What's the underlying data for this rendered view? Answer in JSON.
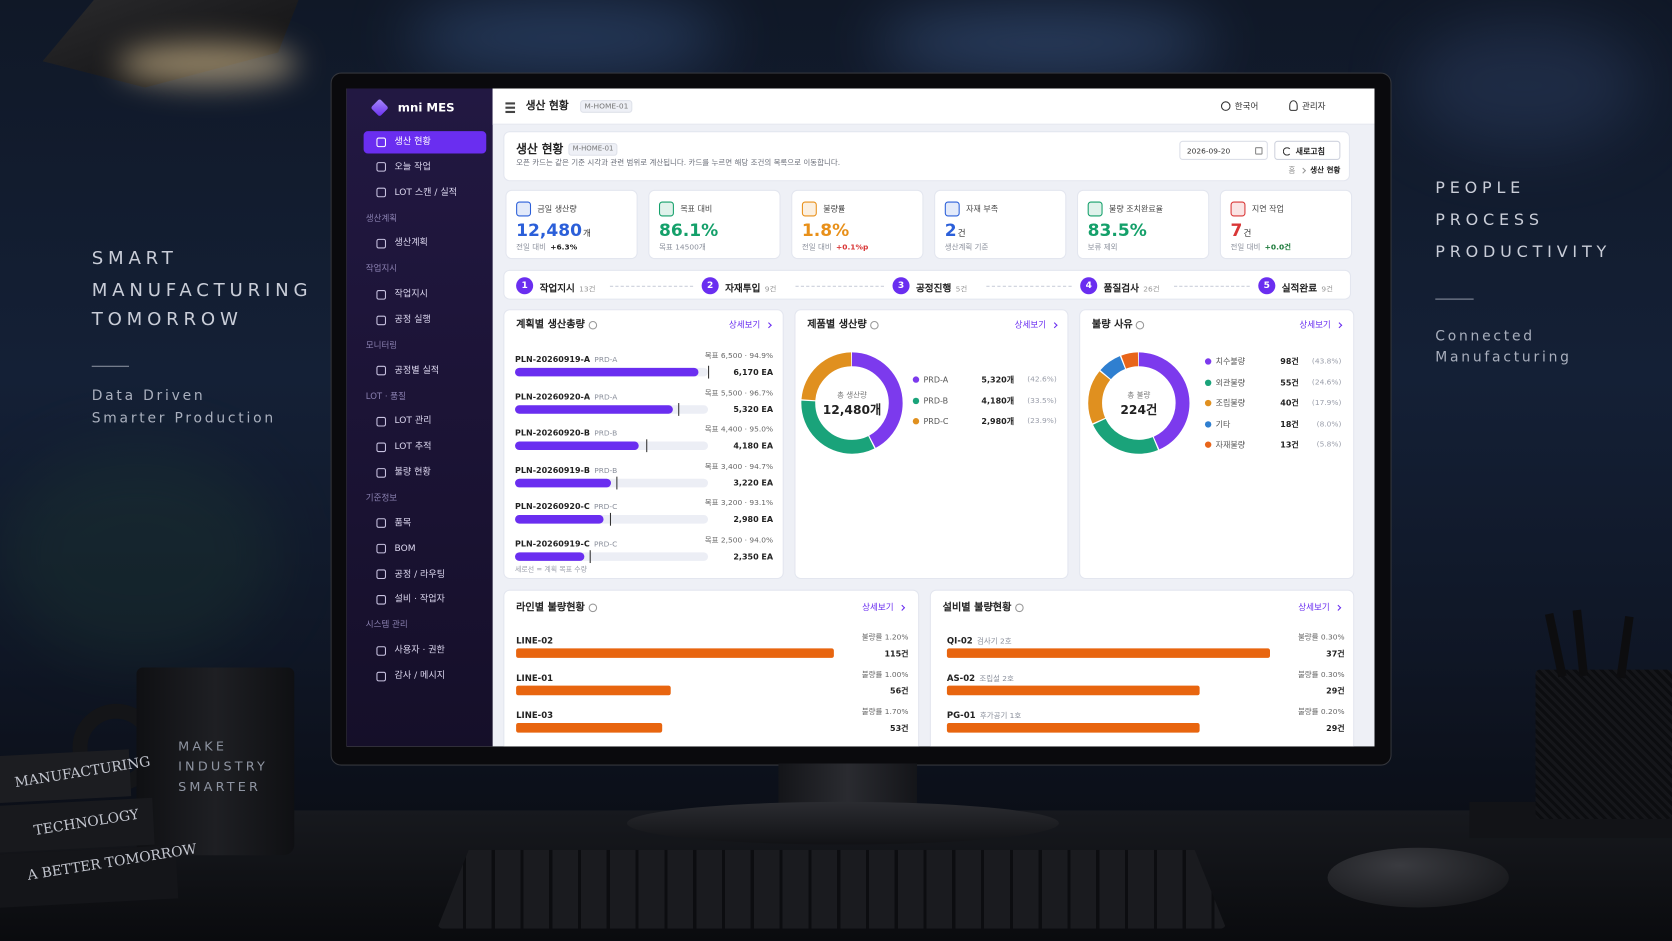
{
  "scene": {
    "left_tagline": [
      "SMART",
      "MANUFACTURING",
      "TOMORROW"
    ],
    "left_sub": [
      "Data Driven",
      "Smarter Production"
    ],
    "right_tagline": [
      "PEOPLE",
      "PROCESS",
      "PRODUCTIVITY"
    ],
    "right_sub": [
      "Connected",
      "Manufacturing"
    ],
    "mug": [
      "MAKE",
      "INDUSTRY",
      "SMARTER"
    ],
    "books": [
      "MANUFACTURING",
      "TECHNOLOGY",
      "A BETTER TOMORROW"
    ]
  },
  "app": {
    "brand": "mni MES",
    "sidebar": [
      {
        "items": [
          "생산 현황",
          "오늘 작업",
          "LOT 스캔 / 실적"
        ]
      },
      {
        "title": "생산계획",
        "items": [
          "생산계획"
        ]
      },
      {
        "title": "작업지시",
        "items": [
          "작업지시",
          "공정 실행"
        ]
      },
      {
        "title": "모니터링",
        "items": [
          "공정별 실적"
        ]
      },
      {
        "title": "LOT · 품질",
        "items": [
          "LOT 관리",
          "LOT 추적",
          "불량 현황"
        ]
      },
      {
        "title": "기준정보",
        "items": [
          "품목",
          "BOM",
          "공정 / 라우팅",
          "설비 · 작업자"
        ]
      },
      {
        "title": "시스템 관리",
        "items": [
          "사용자 · 권한",
          "감사 / 메시지"
        ]
      }
    ],
    "topbar": {
      "title": "생산 현황",
      "code": "M-HOME-01",
      "language": "한국어",
      "user": "관리자"
    },
    "header": {
      "title": "생산 현황",
      "code": "M-HOME-01",
      "description": "오픈 카드는 같은 기준 시각과 관련 범위로 계산됩니다. 카드를 누르면 해당 조건의 목록으로 이동합니다.",
      "date": "2026-09-20",
      "refresh": "새로고침",
      "breadcrumb": [
        "홈",
        "생산 현황"
      ]
    },
    "kpis": [
      {
        "label": "금일 생산량",
        "value": "12,480",
        "unit": "개",
        "sub": "전일 대비",
        "delta": "+6.3%",
        "color": "#2b5fd9",
        "delta_color": "#222222"
      },
      {
        "label": "목표 대비",
        "value": "86.1%",
        "sub": "목표 14500개",
        "color": "#14a06a"
      },
      {
        "label": "불량률",
        "value": "1.8%",
        "sub": "전일 대비",
        "delta": "+0.1%p",
        "color": "#e8901a",
        "delta_color": "#d93636"
      },
      {
        "label": "자재 부족",
        "value": "2",
        "unit": "건",
        "sub": "생산계획 기준",
        "color": "#2b5fd9"
      },
      {
        "label": "불량 조치완료율",
        "value": "83.5%",
        "sub": "보류 제외",
        "color": "#14a06a"
      },
      {
        "label": "지연 작업",
        "value": "7",
        "unit": "건",
        "sub": "전일 대비",
        "delta": "+0.0건",
        "color": "#d93636",
        "delta_color": "#1c7a3a"
      }
    ],
    "steps": [
      {
        "number": 1,
        "label": "작업지시",
        "count": "13건"
      },
      {
        "number": 2,
        "label": "자재투입",
        "count": "9건"
      },
      {
        "number": 3,
        "label": "공정진행",
        "count": "5건"
      },
      {
        "number": 4,
        "label": "품질검사",
        "count": "26건"
      },
      {
        "number": 5,
        "label": "실적완료",
        "count": "9건"
      }
    ],
    "plan_panel": {
      "title": "계획별 생산총량",
      "link": "상세보기",
      "color": "#6a2ef0",
      "rows": [
        {
          "plan": "PLN-20260919-A",
          "product": "PRD-A",
          "target": 6500,
          "target_label": "목표 6,500 · 94.9%",
          "actual": 6170,
          "actual_label": "6,170 EA"
        },
        {
          "plan": "PLN-20260920-A",
          "product": "PRD-A",
          "target": 5500,
          "target_label": "목표 5,500 · 96.7%",
          "actual": 5320,
          "actual_label": "5,320 EA"
        },
        {
          "plan": "PLN-20260920-B",
          "product": "PRD-B",
          "target": 4400,
          "target_label": "목표 4,400 · 95.0%",
          "actual": 4180,
          "actual_label": "4,180 EA"
        },
        {
          "plan": "PLN-20260919-B",
          "product": "PRD-B",
          "target": 3400,
          "target_label": "목표 3,400 · 94.7%",
          "actual": 3220,
          "actual_label": "3,220 EA"
        },
        {
          "plan": "PLN-20260920-C",
          "product": "PRD-C",
          "target": 3200,
          "target_label": "목표 3,200 · 93.1%",
          "actual": 2980,
          "actual_label": "2,980 EA"
        },
        {
          "plan": "PLN-20260919-C",
          "product": "PRD-C",
          "target": 2500,
          "target_label": "목표 2,500 · 94.0%",
          "actual": 2350,
          "actual_label": "2,350 EA"
        }
      ],
      "note": "세로선 = 계획 목표 수량"
    },
    "product_chart": {
      "type": "donut",
      "title": "제품별 생산량",
      "link": "상세보기",
      "center_label": "총 생산량",
      "center_value": "12,480개",
      "series": [
        {
          "name": "PRD-A",
          "color": "#7c3aed",
          "value": 5320,
          "value_label": "5,320개",
          "share_label": "(42.6%)"
        },
        {
          "name": "PRD-B",
          "color": "#1aa37a",
          "value": 4180,
          "value_label": "4,180개",
          "share_label": "(33.5%)"
        },
        {
          "name": "PRD-C",
          "color": "#e0901f",
          "value": 2980,
          "value_label": "2,980개",
          "share_label": "(23.9%)"
        }
      ]
    },
    "defect_chart": {
      "type": "donut",
      "title": "불량 사유",
      "link": "상세보기",
      "center_label": "총 불량",
      "center_value": "224건",
      "series": [
        {
          "name": "치수불량",
          "color": "#7c3aed",
          "value": 98,
          "value_label": "98건",
          "share_label": "(43.8%)"
        },
        {
          "name": "외관불량",
          "color": "#1aa37a",
          "value": 55,
          "value_label": "55건",
          "share_label": "(24.6%)"
        },
        {
          "name": "조립불량",
          "color": "#e0901f",
          "value": 40,
          "value_label": "40건",
          "share_label": "(17.9%)"
        },
        {
          "name": "기타",
          "color": "#2f7fd0",
          "value": 18,
          "value_label": "18건",
          "share_label": "(8.0%)"
        },
        {
          "name": "자재불량",
          "color": "#e8651a",
          "value": 13,
          "value_label": "13건",
          "share_label": "(5.8%)"
        }
      ]
    },
    "line_panel": {
      "title": "라인별 불량현황",
      "link": "상세보기",
      "color": "#e8650f",
      "rows": [
        {
          "name": "LINE-02",
          "rate_label": "불량률 1.20%",
          "count": 115,
          "count_label": "115건"
        },
        {
          "name": "LINE-01",
          "rate_label": "불량률 1.00%",
          "count": 56,
          "count_label": "56건"
        },
        {
          "name": "LINE-03",
          "rate_label": "불량률 1.70%",
          "count": 53,
          "count_label": "53건"
        }
      ]
    },
    "equipment_panel": {
      "title": "설비별 불량현황",
      "link": "상세보기",
      "color": "#e8650f",
      "rows": [
        {
          "name": "QI-02",
          "desc": "검사기 2호",
          "rate_label": "불량률 0.30%",
          "count": 37,
          "count_label": "37건"
        },
        {
          "name": "AS-02",
          "desc": "조립설 2호",
          "rate_label": "불량률 0.30%",
          "count": 29,
          "count_label": "29건"
        },
        {
          "name": "PG-01",
          "desc": "후가공기 1호",
          "rate_label": "불량률 0.20%",
          "count": 29,
          "count_label": "29건"
        }
      ]
    }
  }
}
